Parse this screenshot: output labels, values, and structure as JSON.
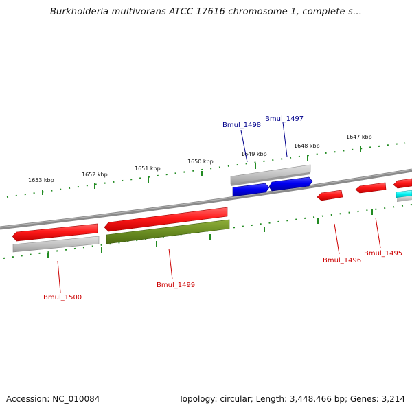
{
  "title": "Burkholderia multivorans ATCC 17616 chromosome 1, complete s...",
  "footer": {
    "accession": "Accession: NC_010084",
    "summary": "Topology: circular; Length: 3,448,466 bp; Genes: 3,214"
  },
  "ticks": [
    {
      "label": "1653 kbp"
    },
    {
      "label": "1652 kbp"
    },
    {
      "label": "1651 kbp"
    },
    {
      "label": "1650 kbp"
    },
    {
      "label": "1649 kbp"
    },
    {
      "label": "1648 kbp"
    },
    {
      "label": "1647 kbp"
    }
  ],
  "genes": [
    {
      "name": "Bmul_1498",
      "color": "#00008b",
      "feature": "blue"
    },
    {
      "name": "Bmul_1497",
      "color": "#00008b",
      "feature": "blue"
    },
    {
      "name": "Bmul_1500",
      "color": "#cc0000",
      "feature": "red"
    },
    {
      "name": "Bmul_1499",
      "color": "#cc0000",
      "feature": "red"
    },
    {
      "name": "Bmul_1496",
      "color": "#cc0000",
      "feature": "red"
    },
    {
      "name": "Bmul_1495",
      "color": "#cc0000",
      "feature": "red"
    }
  ],
  "colors": {
    "backbone": "#808080",
    "ruler": "#228b22",
    "forward_gene": "#ff0000",
    "reverse_gene": "#0000ee",
    "grey_feature": "#bdbdbd",
    "olive_feature": "#6b8e23",
    "cyan_feature": "#00ffff"
  }
}
